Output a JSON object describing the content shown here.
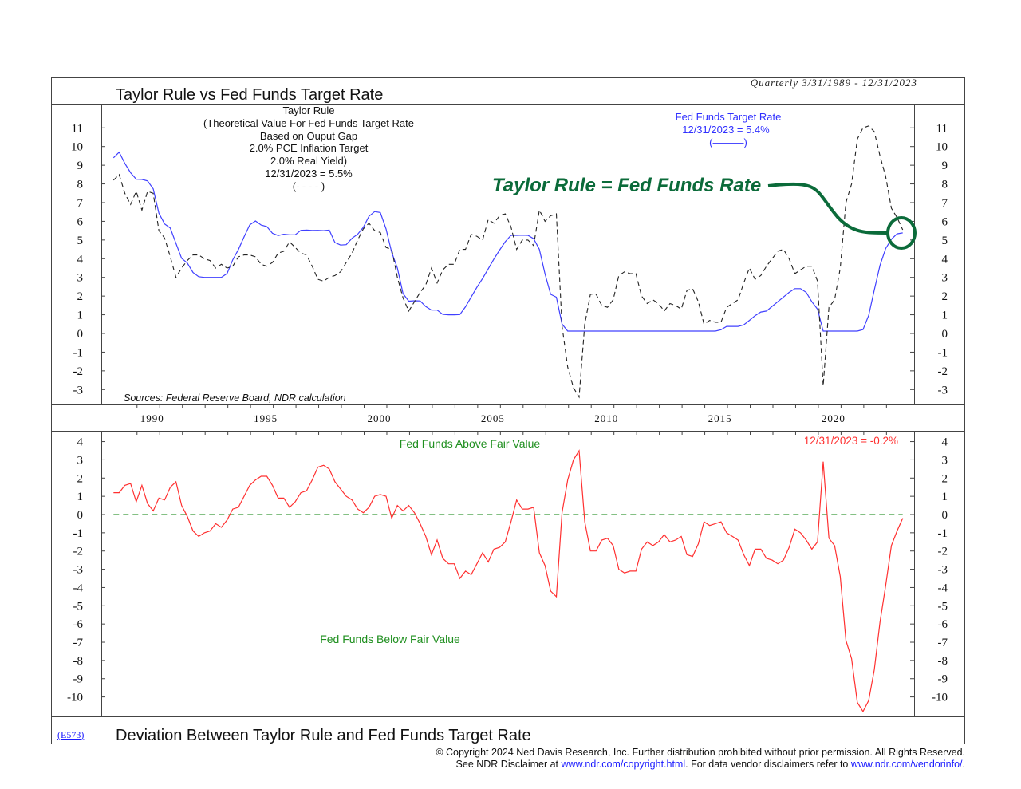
{
  "header": {
    "title": "Taylor Rule vs Fed Funds Target Rate",
    "period": "Quarterly 3/31/1989 - 12/31/2023"
  },
  "top_panel": {
    "taylor_legend": [
      "Taylor Rule",
      "(Theoretical Value For Fed Funds Target Rate",
      "Based on Ouput Gap",
      "2.0% PCE Inflation Target",
      "2.0% Real Yield)",
      "12/31/2023 = 5.5%",
      "(- - - - )"
    ],
    "fed_legend": [
      "Fed Funds Target Rate",
      "12/31/2023 = 5.4%",
      "(———)"
    ],
    "annotation": "Taylor Rule = Fed Funds Rate",
    "source": "Sources: Federal Reserve Board, NDR calculation"
  },
  "bottom_panel": {
    "above_label": "Fed Funds Above Fair Value",
    "below_label": "Fed Funds Below Fair Value",
    "latest_label": "12/31/2023 = -0.2%",
    "title": "Deviation Between Taylor Rule and Fed Funds Target Rate",
    "chart_code": "(E573)"
  },
  "footer": {
    "line1": "© Copyright 2024 Ned Davis Research, Inc.  Further distribution prohibited without prior permission.  All Rights Reserved.",
    "line2_a": "See NDR Disclaimer at ",
    "link1": "www.ndr.com/copyright.html",
    "line2_b": ". For data vendor disclaimers refer to ",
    "link2": "www.ndr.com/vendorinfo/",
    "line2_c": "."
  },
  "colors": {
    "fed_funds": "#4040ff",
    "taylor": "#222222",
    "deviation": "#ff3030",
    "zero_line": "#3a9a3a",
    "annotation": "#0b6b3a",
    "fair_value_text": "#1f8f1f"
  },
  "chart_data": [
    {
      "type": "line",
      "title": "Taylor Rule vs Fed Funds Target Rate",
      "frequency": "quarterly",
      "x_start": "3/31/1989",
      "x_end": "12/31/2023",
      "x_ticks": [
        "1990",
        "1995",
        "2000",
        "2005",
        "2010",
        "2015",
        "2020"
      ],
      "y_ticks": [
        "11",
        "10",
        "9",
        "8",
        "7",
        "6",
        "5",
        "4",
        "3",
        "2",
        "1",
        "0",
        "-1",
        "-2",
        "-3"
      ],
      "ylim": [
        -3,
        11
      ],
      "grid": false,
      "series": [
        {
          "name": "Fed Funds Target Rate",
          "style": "solid",
          "values": [
            9.4,
            9.7,
            9.1,
            8.6,
            8.25,
            8.24,
            8.16,
            7.74,
            6.43,
            5.86,
            5.64,
            4.82,
            4.02,
            3.77,
            3.26,
            3.04,
            3.0,
            3.0,
            3.0,
            3.0,
            3.21,
            3.94,
            4.49,
            5.17,
            5.81,
            6.02,
            5.8,
            5.72,
            5.36,
            5.24,
            5.31,
            5.28,
            5.28,
            5.52,
            5.53,
            5.51,
            5.52,
            5.5,
            5.53,
            4.86,
            4.73,
            4.75,
            5.09,
            5.31,
            5.68,
            6.27,
            6.52,
            6.47,
            5.59,
            4.33,
            3.5,
            2.13,
            1.73,
            1.75,
            1.74,
            1.44,
            1.25,
            1.25,
            1.02,
            1.0,
            1.0,
            1.01,
            1.43,
            1.95,
            2.47,
            2.94,
            3.46,
            3.98,
            4.46,
            4.91,
            5.25,
            5.25,
            5.26,
            5.25,
            5.07,
            4.5,
            3.18,
            2.09,
            1.94,
            0.51,
            0.13,
            0.13,
            0.13,
            0.13,
            0.13,
            0.13,
            0.13,
            0.13,
            0.13,
            0.13,
            0.13,
            0.13,
            0.13,
            0.13,
            0.13,
            0.13,
            0.13,
            0.13,
            0.13,
            0.13,
            0.13,
            0.13,
            0.13,
            0.13,
            0.13,
            0.13,
            0.13,
            0.2,
            0.38,
            0.38,
            0.38,
            0.46,
            0.7,
            0.95,
            1.15,
            1.2,
            1.45,
            1.7,
            1.95,
            2.2,
            2.4,
            2.4,
            2.2,
            1.7,
            1.3,
            0.13,
            0.13,
            0.13,
            0.13,
            0.13,
            0.13,
            0.13,
            0.21,
            0.96,
            2.33,
            3.64,
            4.54,
            5.04,
            5.33,
            5.38
          ]
        },
        {
          "name": "Taylor Rule",
          "style": "dashed",
          "values": [
            8.2,
            8.5,
            7.5,
            6.9,
            7.6,
            6.6,
            7.6,
            7.5,
            5.5,
            5.1,
            4.1,
            3.0,
            3.5,
            3.9,
            4.2,
            4.2,
            4.0,
            3.9,
            3.5,
            3.7,
            3.5,
            3.6,
            4.1,
            4.2,
            4.2,
            4.1,
            3.7,
            3.6,
            3.8,
            4.3,
            4.4,
            4.9,
            4.6,
            4.3,
            4.2,
            3.6,
            2.9,
            2.8,
            3.0,
            3.1,
            3.3,
            3.8,
            4.3,
            5.0,
            5.6,
            5.9,
            5.5,
            5.4,
            4.6,
            4.5,
            3.0,
            1.9,
            1.2,
            1.7,
            2.2,
            2.6,
            3.5,
            2.7,
            3.4,
            3.7,
            3.7,
            4.5,
            4.5,
            5.3,
            5.2,
            5.0,
            6.1,
            5.9,
            6.3,
            6.4,
            5.7,
            4.5,
            5.0,
            5.0,
            4.7,
            6.6,
            6.0,
            6.3,
            6.4,
            0.4,
            -1.8,
            -2.9,
            -3.4,
            0.5,
            2.1,
            2.1,
            1.5,
            1.4,
            1.8,
            3.1,
            3.3,
            3.2,
            3.2,
            2.0,
            1.6,
            1.8,
            1.6,
            1.2,
            1.6,
            1.5,
            1.3,
            2.3,
            2.4,
            1.7,
            0.5,
            0.7,
            0.6,
            0.6,
            1.4,
            1.6,
            1.8,
            2.7,
            3.5,
            2.9,
            3.1,
            3.6,
            4.0,
            4.4,
            4.5,
            4.0,
            3.2,
            3.4,
            3.6,
            3.6,
            2.8,
            -2.8,
            1.4,
            1.8,
            3.5,
            7.0,
            8.0,
            10.4,
            11.0,
            11.1,
            10.8,
            9.5,
            8.4,
            6.7,
            6.2,
            5.55
          ]
        }
      ]
    },
    {
      "type": "line",
      "title": "Deviation Between Taylor Rule and Fed Funds Target Rate",
      "frequency": "quarterly",
      "x_start": "3/31/1989",
      "x_end": "12/31/2023",
      "y_ticks": [
        "4",
        "3",
        "2",
        "1",
        "0",
        "-1",
        "-2",
        "-3",
        "-4",
        "-5",
        "-6",
        "-7",
        "-8",
        "-9",
        "-10"
      ],
      "ylim": [
        -10,
        4
      ],
      "reference_line": 0,
      "grid": false,
      "series": [
        {
          "values": [
            1.2,
            1.2,
            1.6,
            1.7,
            0.7,
            1.6,
            0.6,
            0.2,
            0.9,
            0.8,
            1.5,
            1.8,
            0.5,
            -0.1,
            -0.9,
            -1.2,
            -1.0,
            -0.9,
            -0.5,
            -0.7,
            -0.3,
            0.3,
            0.4,
            1.0,
            1.6,
            1.9,
            2.1,
            2.1,
            1.6,
            0.9,
            0.9,
            0.4,
            0.7,
            1.2,
            1.3,
            1.9,
            2.6,
            2.7,
            2.5,
            1.8,
            1.4,
            1.0,
            0.8,
            0.3,
            0.1,
            0.4,
            1.0,
            1.1,
            1.0,
            -0.2,
            0.5,
            0.2,
            0.5,
            0.1,
            -0.5,
            -1.2,
            -2.2,
            -1.4,
            -2.4,
            -2.7,
            -2.7,
            -3.5,
            -3.1,
            -3.3,
            -2.7,
            -2.1,
            -2.6,
            -1.9,
            -1.8,
            -1.5,
            -0.4,
            0.8,
            0.3,
            0.3,
            0.4,
            -2.1,
            -2.8,
            -4.2,
            -4.5,
            0.1,
            1.9,
            3.0,
            3.5,
            -0.4,
            -2.0,
            -2.0,
            -1.4,
            -1.3,
            -1.7,
            -3.0,
            -3.2,
            -3.1,
            -3.1,
            -1.9,
            -1.5,
            -1.7,
            -1.5,
            -1.1,
            -1.5,
            -1.4,
            -1.2,
            -2.2,
            -2.3,
            -1.6,
            -0.4,
            -0.6,
            -0.5,
            -0.4,
            -1.0,
            -1.2,
            -1.4,
            -2.2,
            -2.8,
            -1.9,
            -1.9,
            -2.4,
            -2.5,
            -2.7,
            -2.5,
            -1.8,
            -0.8,
            -1.0,
            -1.4,
            -1.9,
            -1.5,
            2.9,
            -1.3,
            -1.7,
            -3.4,
            -6.9,
            -7.9,
            -10.3,
            -10.8,
            -10.2,
            -8.5,
            -5.9,
            -3.9,
            -1.7,
            -0.9,
            -0.2
          ]
        }
      ]
    }
  ]
}
